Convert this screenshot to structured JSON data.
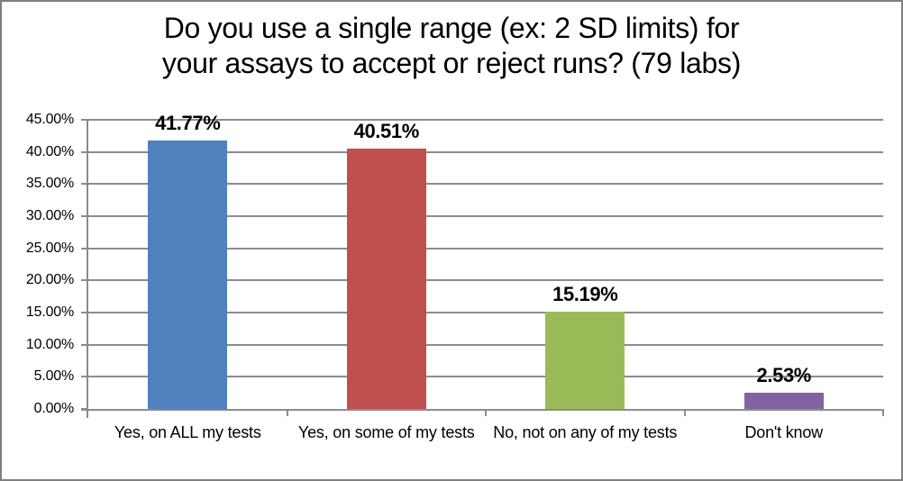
{
  "frame": {
    "background": "#FFFFFF",
    "border_color": "#7F7F7F"
  },
  "chart_data": {
    "type": "bar",
    "title": "Do you use a single range (ex: 2 SD limits) for your assays to accept or reject runs? (79 labs)",
    "title_lines": [
      "Do you use a single range (ex: 2 SD limits) for",
      "your assays to accept or reject runs? (79 labs)"
    ],
    "categories": [
      "Yes, on ALL my tests",
      "Yes, on some of my tests",
      "No, not on any of my tests",
      "Don't know"
    ],
    "values": [
      41.77,
      40.51,
      15.19,
      2.53
    ],
    "value_labels": [
      "41.77%",
      "40.51%",
      "15.19%",
      "2.53%"
    ],
    "bar_colors": [
      "#4F81BD",
      "#C0504D",
      "#9BBB59",
      "#8064A2"
    ],
    "ylim": [
      0,
      45
    ],
    "ytick_step": 5,
    "ytick_labels": [
      "0.00%",
      "5.00%",
      "10.00%",
      "15.00%",
      "20.00%",
      "25.00%",
      "30.00%",
      "35.00%",
      "40.00%",
      "45.00%"
    ],
    "xlabel": "",
    "ylabel": "",
    "grid": true,
    "gridline_color": "#8C8C8C",
    "axis_color": "#8C8C8C",
    "text_color": "#000000",
    "legend": "none"
  }
}
